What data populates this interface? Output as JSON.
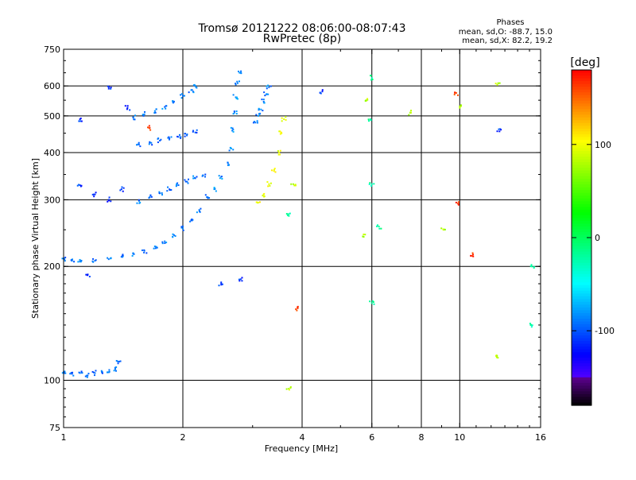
{
  "chart_data": {
    "type": "scatter",
    "title": "Tromsø 20121222 08:06:00-08:07:43",
    "subtitle": "RwPretec (8p)",
    "xlabel": "Frequency [MHz]",
    "ylabel": "Stationary phase Virtual Height [km]",
    "x_scale": "log",
    "y_scale": "log",
    "xlim": [
      1,
      16
    ],
    "ylim": [
      75,
      750
    ],
    "x_ticks": [
      "1",
      "2",
      "4",
      "6",
      "8",
      "10",
      "16"
    ],
    "y_ticks": [
      "75",
      "100",
      "200",
      "300",
      "400",
      "500",
      "600",
      "750"
    ],
    "x_grid": [
      2,
      4,
      6,
      8,
      10
    ],
    "y_grid": [
      100,
      200,
      300,
      400,
      500,
      600
    ],
    "grid": true,
    "stats_title": "Phases",
    "stats": [
      "mean, sd,O: -88.7, 15.0",
      "mean, sd,X:  82.2, 19.2"
    ],
    "colorbar": {
      "label": "[deg]",
      "range": [
        -180,
        180
      ],
      "ticks": [
        "100",
        "0",
        "-100"
      ],
      "tick_values": [
        100,
        0,
        -100
      ]
    },
    "traces": [
      {
        "name": "",
        "phase": -95,
        "points": [
          [
            1.0,
            105
          ],
          [
            1.05,
            104
          ],
          [
            1.1,
            104.5
          ],
          [
            1.15,
            103
          ],
          [
            1.2,
            104.5
          ],
          [
            1.25,
            105
          ],
          [
            1.3,
            105
          ],
          [
            1.35,
            107
          ],
          [
            1.38,
            112
          ]
        ]
      },
      {
        "name": "",
        "phase": -90,
        "points": [
          [
            1.0,
            210
          ],
          [
            1.05,
            207
          ],
          [
            1.1,
            206
          ],
          [
            1.2,
            207
          ],
          [
            1.3,
            209
          ],
          [
            1.4,
            212
          ],
          [
            1.5,
            216
          ],
          [
            1.6,
            220
          ],
          [
            1.7,
            226
          ],
          [
            1.8,
            233
          ],
          [
            1.9,
            242
          ],
          [
            2.0,
            252
          ],
          [
            2.1,
            265
          ],
          [
            2.2,
            282
          ],
          [
            2.3,
            305
          ]
        ]
      },
      {
        "name": "",
        "phase": -92,
        "points": [
          [
            1.55,
            298
          ],
          [
            1.65,
            305
          ],
          [
            1.75,
            312
          ],
          [
            1.85,
            320
          ],
          [
            1.95,
            328
          ],
          [
            2.05,
            335
          ],
          [
            2.15,
            342
          ],
          [
            2.25,
            348
          ]
        ]
      },
      {
        "name": "",
        "phase": -98,
        "points": [
          [
            1.55,
            420
          ],
          [
            1.65,
            425
          ],
          [
            1.75,
            430
          ],
          [
            1.85,
            436
          ],
          [
            1.95,
            440
          ],
          [
            2.05,
            447
          ],
          [
            2.15,
            452
          ]
        ]
      },
      {
        "name": "",
        "phase": -90,
        "points": [
          [
            1.5,
            495
          ],
          [
            1.6,
            505
          ],
          [
            1.7,
            515
          ],
          [
            1.8,
            528
          ],
          [
            1.9,
            545
          ],
          [
            2.0,
            565
          ],
          [
            2.1,
            585
          ],
          [
            2.15,
            600
          ]
        ]
      },
      {
        "name": "",
        "phase": -85,
        "points": [
          [
            2.4,
            320
          ],
          [
            2.5,
            345
          ],
          [
            2.6,
            375
          ],
          [
            2.65,
            410
          ],
          [
            2.68,
            460
          ],
          [
            2.7,
            510
          ],
          [
            2.72,
            560
          ],
          [
            2.75,
            610
          ],
          [
            2.8,
            650
          ]
        ]
      },
      {
        "name": "",
        "phase": -88,
        "points": [
          [
            3.05,
            480
          ],
          [
            3.1,
            500
          ],
          [
            3.15,
            520
          ],
          [
            3.2,
            545
          ],
          [
            3.25,
            570
          ],
          [
            3.3,
            595
          ]
        ]
      },
      {
        "name": "",
        "phase": 100,
        "points": [
          [
            3.1,
            295
          ],
          [
            3.2,
            310
          ],
          [
            3.3,
            330
          ],
          [
            3.4,
            360
          ],
          [
            3.5,
            400
          ],
          [
            3.55,
            450
          ],
          [
            3.6,
            490
          ]
        ]
      },
      {
        "name": "",
        "phase": 80,
        "points": [
          [
            3.8,
            330
          ],
          [
            3.7,
            95
          ],
          [
            5.8,
            550
          ],
          [
            5.7,
            240
          ],
          [
            7.5,
            510
          ],
          [
            9.1,
            250
          ],
          [
            12.5,
            610
          ],
          [
            12.4,
            115
          ],
          [
            10.0,
            530
          ]
        ]
      },
      {
        "name": "",
        "phase": -20,
        "points": [
          [
            6.0,
            630
          ],
          [
            5.95,
            490
          ],
          [
            6.0,
            330
          ],
          [
            6.0,
            160
          ],
          [
            6.25,
            255
          ],
          [
            3.7,
            275
          ],
          [
            15.1,
            140
          ],
          [
            15.2,
            200
          ]
        ]
      },
      {
        "name": "",
        "phase": -110,
        "points": [
          [
            1.1,
            490
          ],
          [
            1.3,
            590
          ],
          [
            1.45,
            525
          ],
          [
            1.1,
            328
          ],
          [
            1.2,
            310
          ],
          [
            1.3,
            300
          ],
          [
            1.4,
            320
          ],
          [
            2.5,
            180
          ],
          [
            2.8,
            185
          ],
          [
            4.5,
            580
          ],
          [
            12.6,
            455
          ],
          [
            1.15,
            190
          ]
        ]
      },
      {
        "name": "",
        "phase": 165,
        "points": [
          [
            9.8,
            575
          ],
          [
            10.8,
            215
          ],
          [
            9.8,
            295
          ],
          [
            3.9,
            155
          ],
          [
            1.65,
            465
          ]
        ]
      }
    ]
  }
}
